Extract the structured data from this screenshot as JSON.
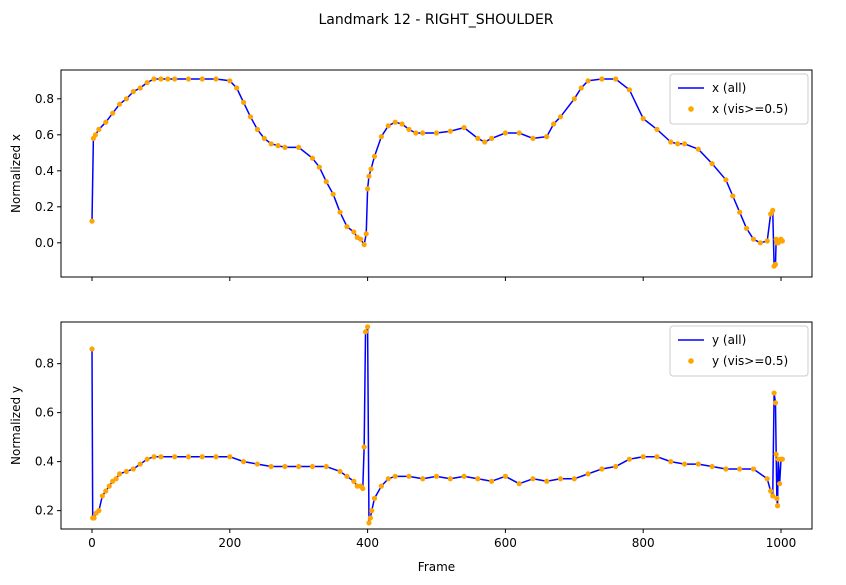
{
  "figure": {
    "title": "Landmark 12 - RIGHT_SHOULDER"
  },
  "colors": {
    "line": "#0000ff",
    "marker": "#ffa500"
  },
  "chart_data": [
    {
      "type": "line",
      "ylabel": "Normalized x",
      "xlabel": "",
      "xlim": [
        -45,
        1045
      ],
      "ylim": [
        -0.19,
        0.96
      ],
      "xticks": [
        0,
        200,
        400,
        600,
        800,
        1000
      ],
      "yticks": [
        0.0,
        0.2,
        0.4,
        0.6,
        0.8
      ],
      "ytick_labels": [
        "0.0",
        "0.2",
        "0.4",
        "0.6",
        "0.8"
      ],
      "show_xtick_labels": false,
      "legend": {
        "position": "top-right",
        "entries": [
          "x (all)",
          "x (vis>=0.5)"
        ]
      },
      "series": [
        {
          "name": "x (all)",
          "style": "line",
          "x": [
            0,
            2,
            5,
            10,
            20,
            30,
            40,
            50,
            60,
            70,
            80,
            90,
            100,
            110,
            120,
            140,
            160,
            180,
            200,
            210,
            220,
            230,
            240,
            250,
            260,
            270,
            280,
            300,
            320,
            330,
            340,
            350,
            360,
            370,
            380,
            385,
            390,
            395,
            398,
            400,
            402,
            405,
            410,
            420,
            430,
            440,
            450,
            460,
            470,
            480,
            500,
            520,
            540,
            560,
            570,
            580,
            600,
            620,
            640,
            660,
            670,
            680,
            700,
            710,
            720,
            740,
            760,
            780,
            800,
            820,
            840,
            850,
            860,
            880,
            900,
            920,
            930,
            940,
            950,
            960,
            970,
            980,
            985,
            988,
            990,
            992,
            993,
            994,
            995,
            996,
            998,
            1000,
            1002
          ],
          "y": [
            0.12,
            0.58,
            0.6,
            0.63,
            0.67,
            0.72,
            0.77,
            0.8,
            0.84,
            0.86,
            0.89,
            0.91,
            0.91,
            0.91,
            0.91,
            0.91,
            0.91,
            0.91,
            0.9,
            0.86,
            0.78,
            0.7,
            0.63,
            0.58,
            0.55,
            0.54,
            0.53,
            0.53,
            0.47,
            0.42,
            0.34,
            0.27,
            0.17,
            0.09,
            0.06,
            0.03,
            0.02,
            -0.01,
            0.05,
            0.3,
            0.37,
            0.41,
            0.48,
            0.59,
            0.65,
            0.67,
            0.66,
            0.63,
            0.61,
            0.61,
            0.61,
            0.62,
            0.64,
            0.58,
            0.56,
            0.58,
            0.61,
            0.61,
            0.58,
            0.59,
            0.66,
            0.7,
            0.8,
            0.86,
            0.9,
            0.91,
            0.91,
            0.85,
            0.69,
            0.63,
            0.56,
            0.55,
            0.55,
            0.52,
            0.44,
            0.35,
            0.26,
            0.17,
            0.08,
            0.02,
            0.0,
            0.01,
            0.16,
            0.18,
            -0.13,
            -0.12,
            0.02,
            0.0,
            0.01,
            0.0,
            0.01,
            0.02,
            0.01
          ]
        },
        {
          "name": "x (vis>=0.5)",
          "style": "markers",
          "x": [
            0,
            2,
            5,
            10,
            20,
            30,
            40,
            50,
            60,
            70,
            80,
            90,
            100,
            110,
            120,
            140,
            160,
            180,
            200,
            210,
            220,
            230,
            240,
            250,
            260,
            270,
            280,
            300,
            320,
            330,
            340,
            350,
            360,
            370,
            380,
            385,
            390,
            395,
            398,
            400,
            402,
            405,
            410,
            420,
            430,
            440,
            450,
            460,
            470,
            480,
            500,
            520,
            540,
            560,
            570,
            580,
            600,
            620,
            640,
            660,
            670,
            680,
            700,
            710,
            720,
            740,
            760,
            780,
            800,
            820,
            840,
            850,
            860,
            880,
            900,
            920,
            930,
            940,
            950,
            960,
            970,
            980,
            985,
            988,
            990,
            992,
            993,
            994,
            995,
            996,
            998,
            1000,
            1002
          ],
          "y": [
            0.12,
            0.58,
            0.6,
            0.63,
            0.67,
            0.72,
            0.77,
            0.8,
            0.84,
            0.86,
            0.89,
            0.91,
            0.91,
            0.91,
            0.91,
            0.91,
            0.91,
            0.91,
            0.9,
            0.86,
            0.78,
            0.7,
            0.63,
            0.58,
            0.55,
            0.54,
            0.53,
            0.53,
            0.47,
            0.42,
            0.34,
            0.27,
            0.17,
            0.09,
            0.06,
            0.03,
            0.02,
            -0.01,
            0.05,
            0.3,
            0.37,
            0.41,
            0.48,
            0.59,
            0.65,
            0.67,
            0.66,
            0.63,
            0.61,
            0.61,
            0.61,
            0.62,
            0.64,
            0.58,
            0.56,
            0.58,
            0.61,
            0.61,
            0.58,
            0.59,
            0.66,
            0.7,
            0.8,
            0.86,
            0.9,
            0.91,
            0.91,
            0.85,
            0.69,
            0.63,
            0.56,
            0.55,
            0.55,
            0.52,
            0.44,
            0.35,
            0.26,
            0.17,
            0.08,
            0.02,
            0.0,
            0.01,
            0.16,
            0.18,
            -0.13,
            -0.12,
            0.02,
            0.0,
            0.01,
            0.0,
            0.01,
            0.02,
            0.01
          ]
        }
      ]
    },
    {
      "type": "line",
      "ylabel": "Normalized y",
      "xlabel": "Frame",
      "xlim": [
        -45,
        1045
      ],
      "ylim": [
        0.125,
        0.97
      ],
      "xticks": [
        0,
        200,
        400,
        600,
        800,
        1000
      ],
      "xtick_labels": [
        "0",
        "200",
        "400",
        "600",
        "800",
        "1000"
      ],
      "yticks": [
        0.2,
        0.4,
        0.6,
        0.8
      ],
      "ytick_labels": [
        "0.2",
        "0.4",
        "0.6",
        "0.8"
      ],
      "show_xtick_labels": true,
      "legend": {
        "position": "top-right",
        "entries": [
          "y (all)",
          "y (vis>=0.5)"
        ]
      },
      "series": [
        {
          "name": "y (all)",
          "style": "line",
          "x": [
            0,
            1,
            3,
            6,
            10,
            15,
            20,
            25,
            30,
            35,
            40,
            50,
            60,
            70,
            80,
            90,
            100,
            120,
            140,
            160,
            180,
            200,
            220,
            240,
            260,
            280,
            300,
            320,
            340,
            360,
            370,
            380,
            385,
            390,
            393,
            395,
            397,
            400,
            402,
            404,
            406,
            410,
            420,
            430,
            440,
            460,
            480,
            500,
            520,
            540,
            560,
            580,
            600,
            620,
            640,
            660,
            680,
            700,
            720,
            740,
            760,
            780,
            800,
            820,
            840,
            860,
            880,
            900,
            920,
            940,
            960,
            980,
            985,
            988,
            990,
            992,
            993,
            994,
            995,
            996,
            998,
            1000,
            1002
          ],
          "y": [
            0.86,
            0.17,
            0.17,
            0.19,
            0.2,
            0.26,
            0.28,
            0.3,
            0.32,
            0.33,
            0.35,
            0.36,
            0.37,
            0.39,
            0.41,
            0.42,
            0.42,
            0.42,
            0.42,
            0.42,
            0.42,
            0.42,
            0.4,
            0.39,
            0.38,
            0.38,
            0.38,
            0.38,
            0.38,
            0.36,
            0.34,
            0.32,
            0.3,
            0.3,
            0.29,
            0.46,
            0.93,
            0.95,
            0.15,
            0.17,
            0.2,
            0.25,
            0.3,
            0.33,
            0.34,
            0.34,
            0.33,
            0.34,
            0.33,
            0.34,
            0.33,
            0.32,
            0.34,
            0.31,
            0.33,
            0.32,
            0.33,
            0.33,
            0.35,
            0.37,
            0.38,
            0.41,
            0.42,
            0.42,
            0.4,
            0.39,
            0.39,
            0.38,
            0.37,
            0.37,
            0.37,
            0.33,
            0.28,
            0.26,
            0.68,
            0.64,
            0.43,
            0.25,
            0.22,
            0.41,
            0.31,
            0.41,
            0.41
          ]
        },
        {
          "name": "y (vis>=0.5)",
          "style": "markers",
          "x": [
            0,
            1,
            3,
            6,
            10,
            15,
            20,
            25,
            30,
            35,
            40,
            50,
            60,
            70,
            80,
            90,
            100,
            120,
            140,
            160,
            180,
            200,
            220,
            240,
            260,
            280,
            300,
            320,
            340,
            360,
            370,
            380,
            385,
            390,
            393,
            395,
            397,
            400,
            402,
            404,
            406,
            410,
            420,
            430,
            440,
            460,
            480,
            500,
            520,
            540,
            560,
            580,
            600,
            620,
            640,
            660,
            680,
            700,
            720,
            740,
            760,
            780,
            800,
            820,
            840,
            860,
            880,
            900,
            920,
            940,
            960,
            980,
            985,
            988,
            990,
            992,
            993,
            994,
            995,
            996,
            998,
            1000,
            1002
          ],
          "y": [
            0.86,
            0.17,
            0.17,
            0.19,
            0.2,
            0.26,
            0.28,
            0.3,
            0.32,
            0.33,
            0.35,
            0.36,
            0.37,
            0.39,
            0.41,
            0.42,
            0.42,
            0.42,
            0.42,
            0.42,
            0.42,
            0.42,
            0.4,
            0.39,
            0.38,
            0.38,
            0.38,
            0.38,
            0.38,
            0.36,
            0.34,
            0.32,
            0.3,
            0.3,
            0.29,
            0.46,
            0.93,
            0.95,
            0.15,
            0.17,
            0.2,
            0.25,
            0.3,
            0.33,
            0.34,
            0.34,
            0.33,
            0.34,
            0.33,
            0.34,
            0.33,
            0.32,
            0.34,
            0.31,
            0.33,
            0.32,
            0.33,
            0.33,
            0.35,
            0.37,
            0.38,
            0.41,
            0.42,
            0.42,
            0.4,
            0.39,
            0.39,
            0.38,
            0.37,
            0.37,
            0.37,
            0.33,
            0.28,
            0.26,
            0.68,
            0.64,
            0.43,
            0.25,
            0.22,
            0.41,
            0.31,
            0.41,
            0.41
          ]
        }
      ]
    }
  ]
}
